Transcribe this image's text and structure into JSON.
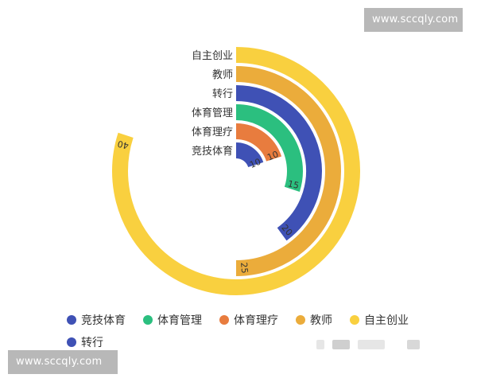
{
  "watermarks": {
    "top": "www.sccqly.com",
    "bottom": "www.sccqly.com"
  },
  "chart_data": {
    "type": "radial-bar",
    "title": "",
    "categories": [
      "竞技体育",
      "体育理疗",
      "体育管理",
      "转行",
      "教师",
      "自主创业"
    ],
    "values": [
      10,
      10,
      15,
      20,
      25,
      40
    ],
    "max": 50,
    "colors": [
      "#3f51b5",
      "#e87c3e",
      "#2bbf7f",
      "#3f51b5",
      "#ebac3b",
      "#f9d03f"
    ],
    "legend": {
      "position": "bottom",
      "items": [
        {
          "name": "竞技体育",
          "color": "#3f51b5"
        },
        {
          "name": "体育管理",
          "color": "#2bbf7f"
        },
        {
          "name": "体育理疗",
          "color": "#e87c3e"
        },
        {
          "name": "教师",
          "color": "#ebac3b"
        },
        {
          "name": "自主创业",
          "color": "#f9d03f"
        },
        {
          "name": "转行",
          "color": "#3f51b5"
        }
      ]
    }
  }
}
